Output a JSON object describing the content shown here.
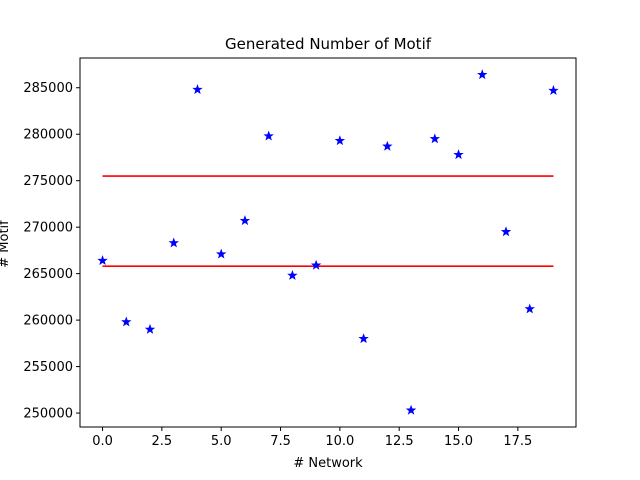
{
  "chart_data": {
    "type": "scatter",
    "title": "Generated Number of Motif",
    "xlabel": "# Network",
    "ylabel": "# Motif",
    "xlim": [
      -0.95,
      19.95
    ],
    "ylim": [
      248500,
      288200
    ],
    "xticks": [
      0.0,
      2.5,
      5.0,
      7.5,
      10.0,
      12.5,
      15.0,
      17.5
    ],
    "xtick_labels": [
      "0.0",
      "2.5",
      "5.0",
      "7.5",
      "10.0",
      "12.5",
      "15.0",
      "17.5"
    ],
    "yticks": [
      250000,
      255000,
      260000,
      265000,
      270000,
      275000,
      280000,
      285000
    ],
    "ytick_labels": [
      "250000",
      "255000",
      "260000",
      "265000",
      "270000",
      "275000",
      "280000",
      "285000"
    ],
    "grid": false,
    "series": [
      {
        "marker": "star",
        "color": "#0000ff",
        "x": [
          0,
          1,
          2,
          3,
          4,
          5,
          6,
          7,
          8,
          9,
          10,
          11,
          12,
          13,
          14,
          15,
          16,
          17,
          18,
          19
        ],
        "y": [
          266400,
          259800,
          259000,
          268300,
          284800,
          267100,
          270700,
          279800,
          264800,
          265900,
          279300,
          258000,
          278700,
          250300,
          279500,
          277800,
          286400,
          269500,
          261200,
          284700
        ]
      }
    ],
    "hlines": [
      {
        "y": 275500,
        "xmin": 0,
        "xmax": 19,
        "color": "#ff0000"
      },
      {
        "y": 265800,
        "xmin": 0,
        "xmax": 19,
        "color": "#ff0000"
      }
    ]
  }
}
